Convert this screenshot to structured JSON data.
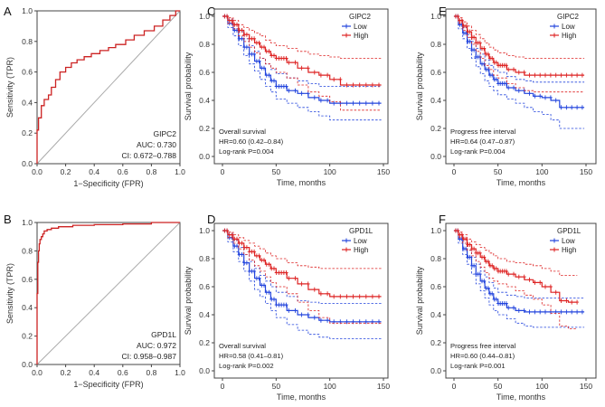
{
  "colors": {
    "roc_curve": "#cc2222",
    "diagonal": "#aaaaaa",
    "low": "#2244dd",
    "high": "#dd2222",
    "axis": "#444444"
  },
  "chart_data": [
    {
      "id": "A",
      "type": "line",
      "title": "",
      "xlabel": "1−Specificity (FPR)",
      "ylabel": "Sensitivity (TPR)",
      "xlim": [
        0,
        1
      ],
      "ylim": [
        0,
        1
      ],
      "xticks": [
        "0.0",
        "0.2",
        "0.4",
        "0.6",
        "0.8",
        "1.0"
      ],
      "yticks": [
        "0.0",
        "0.2",
        "0.4",
        "0.6",
        "0.8",
        "1.0"
      ],
      "series": [
        {
          "name": "ROC",
          "x": [
            0,
            0,
            0.01,
            0.01,
            0.03,
            0.03,
            0.05,
            0.05,
            0.08,
            0.08,
            0.1,
            0.1,
            0.13,
            0.13,
            0.16,
            0.16,
            0.2,
            0.2,
            0.24,
            0.24,
            0.28,
            0.28,
            0.33,
            0.33,
            0.38,
            0.38,
            0.44,
            0.44,
            0.5,
            0.5,
            0.55,
            0.55,
            0.62,
            0.62,
            0.68,
            0.68,
            0.75,
            0.75,
            0.82,
            0.82,
            0.88,
            0.88,
            0.93,
            0.93,
            0.97,
            0.97,
            1.0
          ],
          "y": [
            0,
            0.22,
            0.22,
            0.3,
            0.3,
            0.38,
            0.38,
            0.42,
            0.42,
            0.45,
            0.45,
            0.5,
            0.5,
            0.55,
            0.55,
            0.6,
            0.6,
            0.63,
            0.63,
            0.66,
            0.66,
            0.68,
            0.68,
            0.7,
            0.7,
            0.72,
            0.72,
            0.74,
            0.74,
            0.76,
            0.76,
            0.78,
            0.78,
            0.81,
            0.81,
            0.84,
            0.84,
            0.87,
            0.87,
            0.9,
            0.9,
            0.94,
            0.94,
            0.97,
            0.97,
            1.0,
            1.0
          ]
        }
      ],
      "legend": "GIPC2",
      "auc": "AUC: 0.730",
      "ci": "CI: 0.672–0.788"
    },
    {
      "id": "B",
      "type": "line",
      "title": "",
      "xlabel": "1−Specificity (FPR)",
      "ylabel": "Sensitivity (TPR)",
      "xlim": [
        0,
        1
      ],
      "ylim": [
        0,
        1
      ],
      "xticks": [
        "0.0",
        "0.2",
        "0.4",
        "0.6",
        "0.8",
        "1.0"
      ],
      "yticks": [
        "0.0",
        "0.2",
        "0.4",
        "0.6",
        "0.8",
        "1.0"
      ],
      "series": [
        {
          "name": "ROC",
          "x": [
            0,
            0,
            0.005,
            0.005,
            0.01,
            0.01,
            0.015,
            0.015,
            0.02,
            0.02,
            0.03,
            0.03,
            0.04,
            0.04,
            0.05,
            0.05,
            0.07,
            0.07,
            0.1,
            0.1,
            0.15,
            0.15,
            0.25,
            0.25,
            0.4,
            0.4,
            0.6,
            0.6,
            0.8,
            0.8,
            1.0
          ],
          "y": [
            0,
            0.5,
            0.5,
            0.72,
            0.72,
            0.8,
            0.8,
            0.85,
            0.85,
            0.88,
            0.88,
            0.9,
            0.9,
            0.92,
            0.92,
            0.94,
            0.94,
            0.95,
            0.95,
            0.96,
            0.96,
            0.97,
            0.97,
            0.98,
            0.98,
            0.985,
            0.985,
            0.99,
            0.99,
            1.0,
            1.0
          ]
        }
      ],
      "legend": "GPD1L",
      "auc": "AUC: 0.972",
      "ci": "CI: 0.958–0.987"
    },
    {
      "id": "C",
      "type": "line",
      "xlabel": "Time, months",
      "ylabel": "Survival probability",
      "xlim": [
        0,
        150
      ],
      "ylim": [
        0,
        1
      ],
      "xticks": [
        "0",
        "50",
        "100",
        "150"
      ],
      "yticks": [
        "0.0",
        "0.2",
        "0.4",
        "0.6",
        "0.8",
        "1.0"
      ],
      "legend_title": "GIPC2",
      "legend_labels": [
        "Low",
        "High"
      ],
      "series": [
        {
          "name": "Low",
          "x": [
            0,
            5,
            10,
            15,
            20,
            25,
            30,
            35,
            40,
            45,
            50,
            60,
            70,
            80,
            90,
            100,
            148
          ],
          "y": [
            1.0,
            0.95,
            0.9,
            0.84,
            0.78,
            0.73,
            0.68,
            0.63,
            0.58,
            0.54,
            0.5,
            0.47,
            0.45,
            0.42,
            0.4,
            0.38,
            0.38
          ],
          "ci_upper": [
            1.0,
            0.98,
            0.94,
            0.89,
            0.84,
            0.79,
            0.75,
            0.7,
            0.66,
            0.62,
            0.59,
            0.56,
            0.54,
            0.52,
            0.5,
            0.5,
            0.5
          ],
          "ci_lower": [
            1.0,
            0.92,
            0.86,
            0.79,
            0.72,
            0.66,
            0.61,
            0.55,
            0.5,
            0.46,
            0.41,
            0.38,
            0.35,
            0.32,
            0.29,
            0.26,
            0.26
          ]
        },
        {
          "name": "High",
          "x": [
            0,
            5,
            10,
            15,
            20,
            25,
            30,
            35,
            40,
            45,
            50,
            60,
            70,
            80,
            90,
            100,
            110,
            125,
            148
          ],
          "y": [
            1.0,
            0.97,
            0.94,
            0.9,
            0.87,
            0.84,
            0.81,
            0.78,
            0.75,
            0.72,
            0.7,
            0.67,
            0.63,
            0.6,
            0.58,
            0.55,
            0.51,
            0.51,
            0.51
          ],
          "ci_upper": [
            1.0,
            0.99,
            0.97,
            0.94,
            0.92,
            0.9,
            0.88,
            0.86,
            0.83,
            0.81,
            0.79,
            0.77,
            0.75,
            0.73,
            0.72,
            0.71,
            0.7,
            0.7,
            0.7
          ],
          "ci_lower": [
            1.0,
            0.95,
            0.91,
            0.86,
            0.82,
            0.78,
            0.74,
            0.7,
            0.66,
            0.63,
            0.6,
            0.56,
            0.51,
            0.46,
            0.43,
            0.39,
            0.33,
            0.33,
            0.33
          ]
        }
      ],
      "annotations": [
        "Overall survival",
        "HR=0.60 (0.42–0.84)",
        "Log-rank P=0.004"
      ]
    },
    {
      "id": "D",
      "type": "line",
      "xlabel": "Time, months",
      "ylabel": "Survival probability",
      "xlim": [
        0,
        150
      ],
      "ylim": [
        0,
        1
      ],
      "xticks": [
        "0",
        "50",
        "100",
        "150"
      ],
      "yticks": [
        "0.0",
        "0.2",
        "0.4",
        "0.6",
        "0.8",
        "1.0"
      ],
      "legend_title": "GPD1L",
      "legend_labels": [
        "Low",
        "High"
      ],
      "series": [
        {
          "name": "Low",
          "x": [
            0,
            5,
            10,
            15,
            20,
            25,
            30,
            35,
            40,
            45,
            50,
            60,
            70,
            80,
            90,
            100,
            148
          ],
          "y": [
            1.0,
            0.95,
            0.89,
            0.83,
            0.77,
            0.71,
            0.66,
            0.61,
            0.56,
            0.51,
            0.47,
            0.43,
            0.4,
            0.38,
            0.36,
            0.35,
            0.35
          ],
          "ci_upper": [
            1.0,
            0.98,
            0.93,
            0.88,
            0.83,
            0.78,
            0.73,
            0.68,
            0.64,
            0.6,
            0.56,
            0.53,
            0.5,
            0.49,
            0.48,
            0.48,
            0.48
          ],
          "ci_lower": [
            1.0,
            0.92,
            0.85,
            0.78,
            0.71,
            0.64,
            0.58,
            0.53,
            0.48,
            0.43,
            0.38,
            0.33,
            0.29,
            0.26,
            0.24,
            0.23,
            0.23
          ]
        },
        {
          "name": "High",
          "x": [
            0,
            5,
            10,
            15,
            20,
            25,
            30,
            35,
            40,
            45,
            50,
            60,
            70,
            80,
            90,
            100,
            110,
            148
          ],
          "y": [
            1.0,
            0.97,
            0.94,
            0.91,
            0.88,
            0.85,
            0.82,
            0.79,
            0.76,
            0.73,
            0.7,
            0.66,
            0.62,
            0.58,
            0.55,
            0.53,
            0.53,
            0.53
          ],
          "ci_upper": [
            1.0,
            0.99,
            0.97,
            0.95,
            0.93,
            0.91,
            0.89,
            0.87,
            0.84,
            0.82,
            0.8,
            0.77,
            0.75,
            0.74,
            0.73,
            0.73,
            0.73,
            0.73
          ],
          "ci_lower": [
            1.0,
            0.95,
            0.91,
            0.87,
            0.83,
            0.79,
            0.75,
            0.71,
            0.67,
            0.63,
            0.6,
            0.55,
            0.49,
            0.43,
            0.38,
            0.34,
            0.34,
            0.34
          ]
        }
      ],
      "annotations": [
        "Overall survival",
        "HR=0.58 (0.41–0.81)",
        "Log-rank P=0.002"
      ]
    },
    {
      "id": "E",
      "type": "line",
      "xlabel": "Time, months",
      "ylabel": "Survival probability",
      "xlim": [
        0,
        150
      ],
      "ylim": [
        0,
        1
      ],
      "xticks": [
        "0",
        "50",
        "100",
        "150"
      ],
      "yticks": [
        "0.0",
        "0.2",
        "0.4",
        "0.6",
        "0.8",
        "1.0"
      ],
      "legend_title": "GIPC2",
      "legend_labels": [
        "Low",
        "High"
      ],
      "series": [
        {
          "name": "Low",
          "x": [
            0,
            5,
            10,
            15,
            20,
            25,
            30,
            35,
            40,
            45,
            50,
            60,
            70,
            80,
            90,
            100,
            110,
            120,
            148
          ],
          "y": [
            1.0,
            0.94,
            0.88,
            0.82,
            0.76,
            0.71,
            0.66,
            0.62,
            0.58,
            0.55,
            0.52,
            0.49,
            0.47,
            0.45,
            0.43,
            0.42,
            0.4,
            0.35,
            0.35
          ],
          "ci_upper": [
            1.0,
            0.97,
            0.92,
            0.87,
            0.82,
            0.77,
            0.73,
            0.69,
            0.65,
            0.62,
            0.6,
            0.57,
            0.55,
            0.54,
            0.53,
            0.53,
            0.53,
            0.53,
            0.53
          ],
          "ci_lower": [
            1.0,
            0.91,
            0.84,
            0.77,
            0.7,
            0.64,
            0.59,
            0.54,
            0.5,
            0.47,
            0.44,
            0.41,
            0.38,
            0.35,
            0.32,
            0.3,
            0.26,
            0.2,
            0.2
          ]
        },
        {
          "name": "High",
          "x": [
            0,
            5,
            10,
            15,
            20,
            25,
            30,
            35,
            40,
            45,
            50,
            60,
            70,
            80,
            90,
            148
          ],
          "y": [
            1.0,
            0.97,
            0.93,
            0.89,
            0.85,
            0.81,
            0.77,
            0.73,
            0.7,
            0.67,
            0.65,
            0.62,
            0.6,
            0.58,
            0.58,
            0.58
          ],
          "ci_upper": [
            1.0,
            0.99,
            0.96,
            0.93,
            0.9,
            0.87,
            0.84,
            0.81,
            0.78,
            0.76,
            0.74,
            0.72,
            0.71,
            0.7,
            0.7,
            0.7
          ],
          "ci_lower": [
            1.0,
            0.95,
            0.9,
            0.85,
            0.8,
            0.75,
            0.7,
            0.65,
            0.62,
            0.58,
            0.56,
            0.52,
            0.49,
            0.47,
            0.46,
            0.46
          ]
        }
      ],
      "annotations": [
        "Progress free interval",
        "HR=0.64 (0.47–0.87)",
        "Log-rank P=0.004"
      ]
    },
    {
      "id": "F",
      "type": "line",
      "xlabel": "Time, months",
      "ylabel": "Survival probability",
      "xlim": [
        0,
        150
      ],
      "ylim": [
        0,
        1
      ],
      "xticks": [
        "0",
        "50",
        "100",
        "150"
      ],
      "yticks": [
        "0.0",
        "0.2",
        "0.4",
        "0.6",
        "0.8",
        "1.0"
      ],
      "legend_title": "GPD1L",
      "legend_labels": [
        "Low",
        "High"
      ],
      "series": [
        {
          "name": "Low",
          "x": [
            0,
            5,
            10,
            15,
            20,
            25,
            30,
            35,
            40,
            45,
            50,
            60,
            70,
            80,
            90,
            148
          ],
          "y": [
            1.0,
            0.94,
            0.87,
            0.81,
            0.75,
            0.69,
            0.64,
            0.59,
            0.55,
            0.51,
            0.48,
            0.45,
            0.43,
            0.42,
            0.42,
            0.42
          ],
          "ci_upper": [
            1.0,
            0.97,
            0.91,
            0.86,
            0.81,
            0.76,
            0.71,
            0.67,
            0.63,
            0.59,
            0.56,
            0.54,
            0.53,
            0.52,
            0.52,
            0.52
          ],
          "ci_lower": [
            1.0,
            0.91,
            0.83,
            0.76,
            0.69,
            0.62,
            0.57,
            0.52,
            0.47,
            0.43,
            0.4,
            0.37,
            0.34,
            0.32,
            0.31,
            0.31
          ]
        },
        {
          "name": "High",
          "x": [
            0,
            5,
            10,
            15,
            20,
            25,
            30,
            35,
            40,
            45,
            50,
            60,
            70,
            80,
            90,
            100,
            110,
            120,
            130,
            140
          ],
          "y": [
            1.0,
            0.97,
            0.94,
            0.9,
            0.87,
            0.84,
            0.81,
            0.78,
            0.75,
            0.73,
            0.71,
            0.69,
            0.67,
            0.65,
            0.63,
            0.6,
            0.56,
            0.5,
            0.49,
            0.49
          ],
          "ci_upper": [
            1.0,
            0.99,
            0.97,
            0.94,
            0.92,
            0.9,
            0.88,
            0.86,
            0.84,
            0.82,
            0.8,
            0.78,
            0.77,
            0.76,
            0.75,
            0.73,
            0.71,
            0.68,
            0.68,
            0.68
          ],
          "ci_lower": [
            1.0,
            0.95,
            0.91,
            0.86,
            0.82,
            0.78,
            0.74,
            0.7,
            0.66,
            0.64,
            0.62,
            0.6,
            0.57,
            0.54,
            0.51,
            0.47,
            0.41,
            0.32,
            0.3,
            0.3
          ]
        }
      ],
      "annotations": [
        "Progress free interval",
        "HR=0.60 (0.44–0.81)",
        "Log-rank P=0.001"
      ]
    }
  ]
}
